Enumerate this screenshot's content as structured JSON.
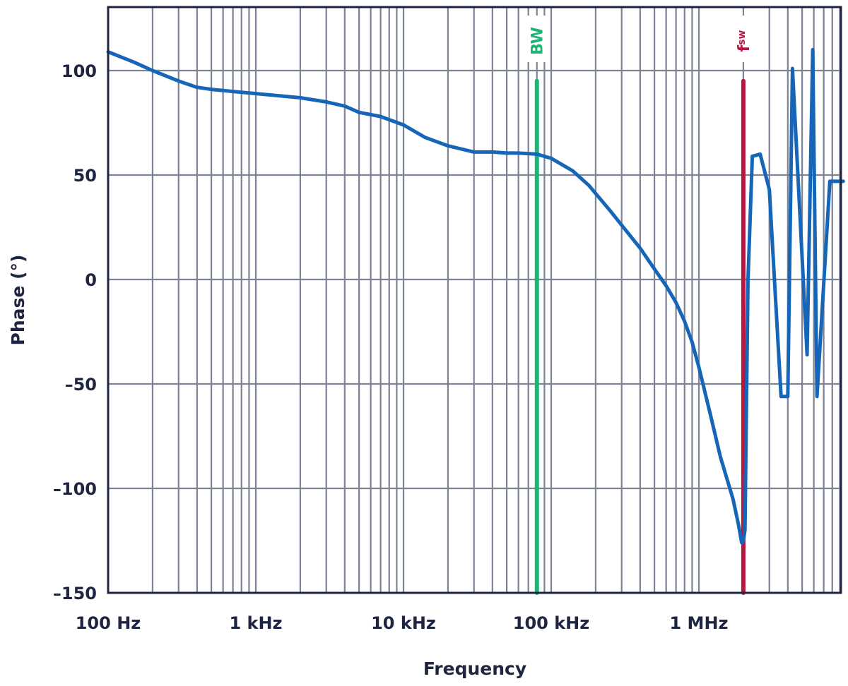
{
  "chart_data": {
    "type": "line",
    "title": "",
    "xlabel": "Frequency",
    "ylabel": "Phase (°)",
    "xscale": "log",
    "xlim": [
      100,
      9500000
    ],
    "ylim": [
      -150,
      129
    ],
    "grid": true,
    "legend": null,
    "x_ticks": [
      {
        "value": 100,
        "label": "100 Hz"
      },
      {
        "value": 1000,
        "label": "1 kHz"
      },
      {
        "value": 10000,
        "label": "10 kHz"
      },
      {
        "value": 100000,
        "label": "100 kHz"
      },
      {
        "value": 1000000,
        "label": "1 MHz"
      }
    ],
    "y_ticks": [
      {
        "value": 100,
        "label": "100"
      },
      {
        "value": 50,
        "label": "50"
      },
      {
        "value": 0,
        "label": "0"
      },
      {
        "value": -50,
        "label": "–50"
      },
      {
        "value": -100,
        "label": "–100"
      },
      {
        "value": -150,
        "label": "–150"
      }
    ],
    "series": [
      {
        "name": "Phase",
        "color": "#1565b8",
        "x": [
          100,
          150,
          200,
          300,
          400,
          500,
          700,
          1000,
          2000,
          3000,
          4000,
          5000,
          7000,
          10000,
          14000,
          20000,
          30000,
          40000,
          50000,
          60000,
          80000,
          100000,
          140000,
          180000,
          250000,
          300000,
          400000,
          500000,
          600000,
          700000,
          800000,
          900000,
          1000000,
          1200000,
          1400000,
          1700000,
          1850000,
          1950000,
          2000000,
          2050000,
          2100000,
          2150000,
          2300000,
          2600000,
          3000000,
          3600000,
          4000000,
          4300000,
          5400000,
          5900000,
          6300000,
          7700000,
          8300000,
          9500000
        ],
        "y": [
          109,
          104,
          100,
          95,
          92,
          91,
          90,
          89,
          87,
          85,
          83,
          80,
          78,
          74,
          68,
          64,
          61,
          61,
          60.5,
          60.5,
          60,
          58,
          52,
          45,
          33,
          26,
          15,
          5,
          -3,
          -11,
          -20,
          -30,
          -42,
          -65,
          -85,
          -105,
          -117,
          -126,
          -125,
          -120,
          -60,
          0,
          59,
          60,
          43,
          -56,
          -56,
          101,
          -36,
          110,
          -56,
          47,
          47,
          47
        ]
      }
    ],
    "annotations": [
      {
        "type": "vline",
        "label": "BW",
        "x": 80000,
        "color": "#1db575",
        "y_top": 95
      },
      {
        "type": "vline",
        "label": "f",
        "label_sub": "SW",
        "x": 2000000,
        "color": "#b8173f",
        "y_top": 95
      }
    ]
  },
  "colors": {
    "axis": "#1f2540",
    "grid": "#7d8294",
    "curve": "#1565b8",
    "bw": "#1db575",
    "fsw": "#b8173f"
  },
  "labels": {
    "x_axis": "Frequency",
    "y_axis": "Phase (°)",
    "bw": "BW",
    "fsw_main": "f",
    "fsw_sub": "SW"
  }
}
